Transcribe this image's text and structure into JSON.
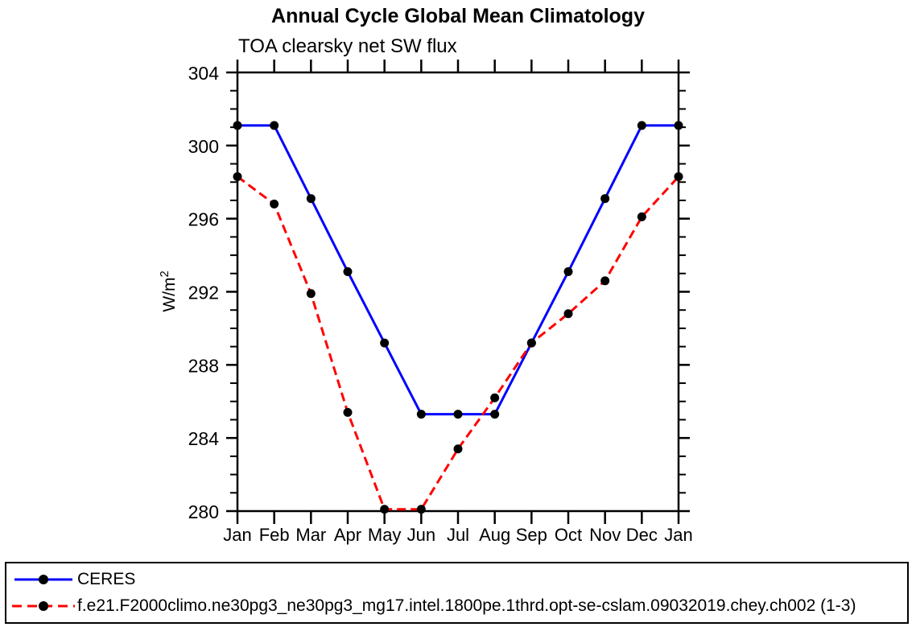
{
  "header": {
    "title": "Annual Cycle Global Mean Climatology",
    "subtitle": "TOA clearsky net SW flux"
  },
  "y_axis": {
    "unit_base": "W/m",
    "unit_exponent": "2"
  },
  "legend": {
    "position": "bottom",
    "entries": [
      {
        "label": "CERES",
        "line_color": "#0000ff",
        "line_style": "solid",
        "marker": "filled-circle",
        "marker_color": "#000000"
      },
      {
        "label": "f.e21.F2000climo.ne30pg3_ne30pg3_mg17.intel.1800pe.1thrd.opt-se-cslam.09032019.chey.ch002 (1-3)",
        "line_color": "#ff0000",
        "line_style": "dashed",
        "marker": "filled-circle",
        "marker_color": "#000000"
      }
    ]
  },
  "chart_data": {
    "type": "line",
    "title": "Annual Cycle Global Mean Climatology",
    "subtitle": "TOA clearsky net SW flux",
    "xlabel": "",
    "ylabel": "W/m²",
    "categories": [
      "Jan",
      "Feb",
      "Mar",
      "Apr",
      "May",
      "Jun",
      "Jul",
      "Aug",
      "Sep",
      "Oct",
      "Nov",
      "Dec",
      "Jan"
    ],
    "ylim": [
      280,
      304
    ],
    "y_major_step": 4,
    "y_minor_step": 1,
    "grid": false,
    "legend_position": "bottom",
    "axis_color": "#000000",
    "series": [
      {
        "name": "CERES",
        "color": "#0000ff",
        "style": "solid",
        "marker": "circle",
        "marker_color": "#000000",
        "values": [
          301.1,
          301.1,
          297.1,
          293.1,
          289.2,
          285.3,
          285.3,
          285.3,
          289.2,
          293.1,
          297.1,
          301.1,
          301.1
        ]
      },
      {
        "name": "f.e21.F2000climo.ne30pg3_ne30pg3_mg17.intel.1800pe.1thrd.opt-se-cslam.09032019.chey.ch002 (1-3)",
        "color": "#ff0000",
        "style": "dashed",
        "marker": "circle",
        "marker_color": "#000000",
        "values": [
          298.3,
          296.8,
          291.9,
          285.4,
          280.1,
          280.1,
          283.4,
          286.2,
          289.2,
          290.8,
          292.6,
          296.1,
          298.3
        ]
      }
    ]
  }
}
